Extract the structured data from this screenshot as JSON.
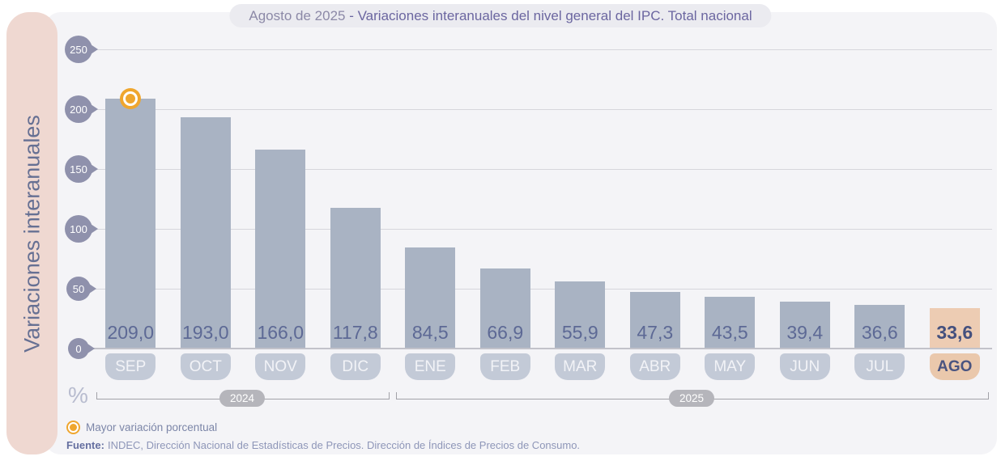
{
  "title": {
    "prefix": "Agosto de 2025",
    "main": "- Variaciones interanuales del nivel general del IPC. Total nacional"
  },
  "y_axis": {
    "label": "Variaciones interanuales",
    "unit": "%",
    "ticks": [
      250,
      200,
      150,
      100,
      50,
      0
    ]
  },
  "chart_data": {
    "type": "bar",
    "title": "Agosto de 2025 - Variaciones interanuales del nivel general del IPC. Total nacional",
    "ylabel": "Variaciones interanuales",
    "ylim": [
      0,
      250
    ],
    "grid": true,
    "categories": [
      "SEP",
      "OCT",
      "NOV",
      "DIC",
      "ENE",
      "FEB",
      "MAR",
      "ABR",
      "MAY",
      "JUN",
      "JUL",
      "AGO"
    ],
    "values": [
      209.0,
      193.0,
      166.0,
      117.8,
      84.5,
      66.9,
      55.9,
      47.3,
      43.5,
      39.4,
      36.6,
      33.6
    ],
    "value_labels": [
      "209,0",
      "193,0",
      "166,0",
      "117,8",
      "84,5",
      "66,9",
      "55,9",
      "47,3",
      "43,5",
      "39,4",
      "36,6",
      "33,6"
    ],
    "highlight_index": 11,
    "marker_index": 0,
    "year_groups": [
      {
        "label": "2024",
        "start": 0,
        "end": 3
      },
      {
        "label": "2025",
        "start": 4,
        "end": 11
      }
    ]
  },
  "legend": {
    "marker": "orange-ring-icon",
    "label": "Mayor variación porcentual"
  },
  "footer": {
    "prefix": "Fuente:",
    "text": "INDEC, Dirección Nacional de Estadísticas de Precios. Dirección de Índices de Precios de Consumo."
  },
  "colors": {
    "panel_bg": "#f4f4f7",
    "sidebar_pink": "#efd8d1",
    "bar": "#a9b3c3",
    "highlight_bar": "#edccb3",
    "month_chip": "#c3cad7",
    "highlight_chip": "#eac8ac",
    "tick_pin": "#8f91ac",
    "marker_orange": "#efa62e",
    "value_text": "#5d6995",
    "year_pill": "#b5b5bb"
  }
}
